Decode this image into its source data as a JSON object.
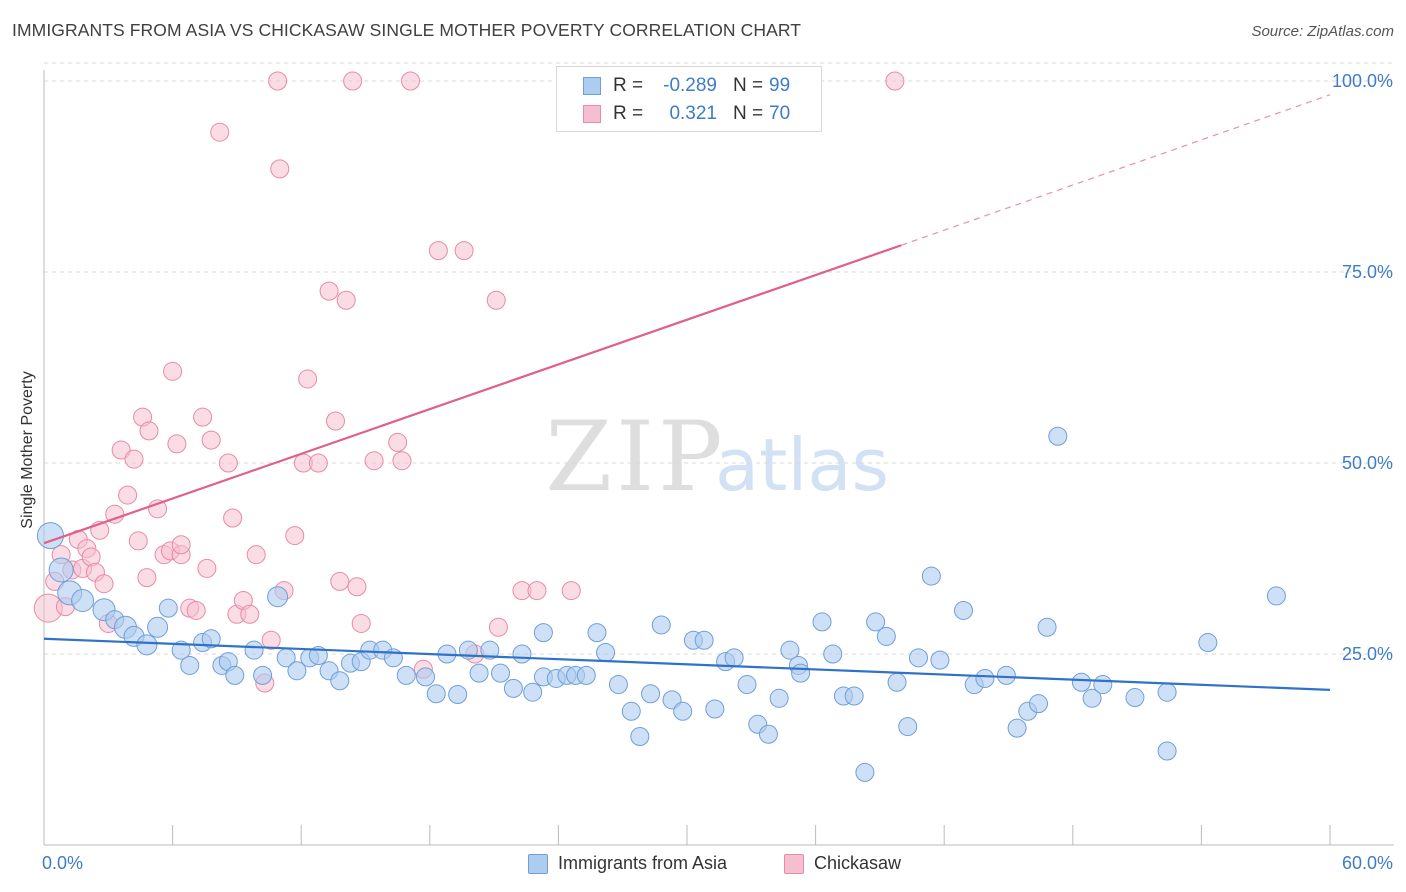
{
  "title": "IMMIGRANTS FROM ASIA VS CHICKASAW SINGLE MOTHER POVERTY CORRELATION CHART",
  "source": "Source: ZipAtlas.com",
  "watermark": {
    "zip": "ZIP",
    "atlas": "atlas"
  },
  "colors": {
    "blue_fill": "#aecbf0",
    "blue_stroke": "#6f9fd8",
    "blue_line": "#2f72c8",
    "pink_fill": "#f6bfd0",
    "pink_stroke": "#e88aa8",
    "pink_line": "#e0608a",
    "tick_text": "#3d7cc9",
    "grid": "#d9d9d9"
  },
  "stats": {
    "blue": {
      "r_label": "R =",
      "r_value": "-0.289",
      "n_label": "N =",
      "n_value": "99"
    },
    "pink": {
      "r_label": "R =",
      "r_value": "0.321",
      "n_label": "N =",
      "n_value": "70"
    }
  },
  "legend": {
    "blue_label": "Immigrants from Asia",
    "pink_label": "Chickasaw"
  },
  "chart_data": {
    "type": "scatter",
    "title": "IMMIGRANTS FROM ASIA VS CHICKASAW SINGLE MOTHER POVERTY CORRELATION CHART",
    "xlabel": "",
    "ylabel": "Single Mother Poverty",
    "xlim": [
      0,
      60
    ],
    "ylim": [
      0,
      102
    ],
    "x_tick_labels": {
      "min": "0.0%",
      "max": "60.0%"
    },
    "y_ticks": [
      {
        "value": 25,
        "label": "25.0%"
      },
      {
        "value": 50,
        "label": "50.0%"
      },
      {
        "value": 75,
        "label": "75.0%"
      },
      {
        "value": 100,
        "label": "100.0%"
      }
    ],
    "grid": true,
    "legend_position": "bottom-center",
    "series": [
      {
        "name": "Immigrants from Asia",
        "color": "#aecbf0",
        "trend": {
          "x": [
            0,
            60
          ],
          "y": [
            27.0,
            20.3
          ],
          "dashed_from_x": null
        },
        "points": [
          {
            "x": 0.3,
            "y": 40.5,
            "s": 13
          },
          {
            "x": 0.8,
            "y": 36,
            "s": 12
          },
          {
            "x": 1.2,
            "y": 33,
            "s": 12
          },
          {
            "x": 1.8,
            "y": 32,
            "s": 11
          },
          {
            "x": 2.8,
            "y": 30.8,
            "s": 11
          },
          {
            "x": 3.3,
            "y": 29.5,
            "s": 9
          },
          {
            "x": 3.8,
            "y": 28.5,
            "s": 11
          },
          {
            "x": 4.2,
            "y": 27.3,
            "s": 10
          },
          {
            "x": 4.8,
            "y": 26.2,
            "s": 10
          },
          {
            "x": 5.3,
            "y": 28.5,
            "s": 10
          },
          {
            "x": 5.8,
            "y": 31,
            "s": 9
          },
          {
            "x": 6.4,
            "y": 25.5,
            "s": 9
          },
          {
            "x": 6.8,
            "y": 23.5,
            "s": 9
          },
          {
            "x": 7.4,
            "y": 26.5,
            "s": 9
          },
          {
            "x": 7.8,
            "y": 27,
            "s": 9
          },
          {
            "x": 8.3,
            "y": 23.5,
            "s": 9
          },
          {
            "x": 8.6,
            "y": 24,
            "s": 9
          },
          {
            "x": 8.9,
            "y": 22.2,
            "s": 9
          },
          {
            "x": 9.8,
            "y": 25.5,
            "s": 9
          },
          {
            "x": 10.2,
            "y": 22.2,
            "s": 9
          },
          {
            "x": 10.9,
            "y": 32.5,
            "s": 10
          },
          {
            "x": 11.3,
            "y": 24.5,
            "s": 9
          },
          {
            "x": 11.8,
            "y": 22.8,
            "s": 9
          },
          {
            "x": 12.4,
            "y": 24.5,
            "s": 9
          },
          {
            "x": 12.8,
            "y": 24.8,
            "s": 9
          },
          {
            "x": 13.3,
            "y": 22.8,
            "s": 9
          },
          {
            "x": 13.8,
            "y": 21.5,
            "s": 9
          },
          {
            "x": 14.3,
            "y": 23.8,
            "s": 9
          },
          {
            "x": 14.8,
            "y": 24,
            "s": 9
          },
          {
            "x": 15.2,
            "y": 25.5,
            "s": 9
          },
          {
            "x": 15.8,
            "y": 25.5,
            "s": 9
          },
          {
            "x": 16.3,
            "y": 24.5,
            "s": 9
          },
          {
            "x": 16.9,
            "y": 22.2,
            "s": 9
          },
          {
            "x": 17.8,
            "y": 22,
            "s": 9
          },
          {
            "x": 18.3,
            "y": 19.8,
            "s": 9
          },
          {
            "x": 18.8,
            "y": 25,
            "s": 9
          },
          {
            "x": 19.3,
            "y": 19.7,
            "s": 9
          },
          {
            "x": 19.8,
            "y": 25.5,
            "s": 9
          },
          {
            "x": 20.3,
            "y": 22.5,
            "s": 9
          },
          {
            "x": 20.8,
            "y": 25.5,
            "s": 9
          },
          {
            "x": 21.3,
            "y": 22.5,
            "s": 9
          },
          {
            "x": 21.9,
            "y": 20.5,
            "s": 9
          },
          {
            "x": 22.3,
            "y": 25,
            "s": 9
          },
          {
            "x": 22.8,
            "y": 20,
            "s": 9
          },
          {
            "x": 23.3,
            "y": 27.8,
            "s": 9
          },
          {
            "x": 23.3,
            "y": 22,
            "s": 9
          },
          {
            "x": 23.9,
            "y": 21.8,
            "s": 9
          },
          {
            "x": 24.4,
            "y": 22.2,
            "s": 9
          },
          {
            "x": 24.8,
            "y": 22.2,
            "s": 9
          },
          {
            "x": 25.3,
            "y": 22.2,
            "s": 9
          },
          {
            "x": 25.8,
            "y": 27.8,
            "s": 9
          },
          {
            "x": 26.2,
            "y": 25.2,
            "s": 9
          },
          {
            "x": 26.8,
            "y": 21,
            "s": 9
          },
          {
            "x": 27.4,
            "y": 17.5,
            "s": 9
          },
          {
            "x": 27.8,
            "y": 14.2,
            "s": 9
          },
          {
            "x": 28.3,
            "y": 19.8,
            "s": 9
          },
          {
            "x": 28.8,
            "y": 28.8,
            "s": 9
          },
          {
            "x": 29.3,
            "y": 19,
            "s": 9
          },
          {
            "x": 29.8,
            "y": 17.5,
            "s": 9
          },
          {
            "x": 30.3,
            "y": 26.8,
            "s": 9
          },
          {
            "x": 30.8,
            "y": 26.8,
            "s": 9
          },
          {
            "x": 31.3,
            "y": 17.8,
            "s": 9
          },
          {
            "x": 31.8,
            "y": 24,
            "s": 9
          },
          {
            "x": 32.2,
            "y": 24.5,
            "s": 9
          },
          {
            "x": 32.8,
            "y": 21,
            "s": 9
          },
          {
            "x": 33.3,
            "y": 15.8,
            "s": 9
          },
          {
            "x": 33.8,
            "y": 14.5,
            "s": 9
          },
          {
            "x": 34.3,
            "y": 19.2,
            "s": 9
          },
          {
            "x": 34.8,
            "y": 25.5,
            "s": 9
          },
          {
            "x": 35.2,
            "y": 23.5,
            "s": 9
          },
          {
            "x": 35.3,
            "y": 22.5,
            "s": 9
          },
          {
            "x": 36.3,
            "y": 29.2,
            "s": 9
          },
          {
            "x": 36.8,
            "y": 25,
            "s": 9
          },
          {
            "x": 37.3,
            "y": 19.5,
            "s": 9
          },
          {
            "x": 37.8,
            "y": 19.5,
            "s": 9
          },
          {
            "x": 38.3,
            "y": 9.5,
            "s": 9
          },
          {
            "x": 38.8,
            "y": 29.2,
            "s": 9
          },
          {
            "x": 39.3,
            "y": 27.3,
            "s": 9
          },
          {
            "x": 39.8,
            "y": 21.3,
            "s": 9
          },
          {
            "x": 40.3,
            "y": 15.5,
            "s": 9
          },
          {
            "x": 40.8,
            "y": 24.5,
            "s": 9
          },
          {
            "x": 41.4,
            "y": 35.2,
            "s": 9
          },
          {
            "x": 41.8,
            "y": 24.2,
            "s": 9
          },
          {
            "x": 42.9,
            "y": 30.7,
            "s": 9
          },
          {
            "x": 43.4,
            "y": 21,
            "s": 9
          },
          {
            "x": 43.9,
            "y": 21.8,
            "s": 9
          },
          {
            "x": 44.9,
            "y": 22.2,
            "s": 9
          },
          {
            "x": 45.4,
            "y": 15.3,
            "s": 9
          },
          {
            "x": 45.9,
            "y": 17.5,
            "s": 9
          },
          {
            "x": 46.4,
            "y": 18.5,
            "s": 9
          },
          {
            "x": 46.8,
            "y": 28.5,
            "s": 9
          },
          {
            "x": 47.3,
            "y": 53.5,
            "s": 9
          },
          {
            "x": 48.4,
            "y": 21.3,
            "s": 9
          },
          {
            "x": 48.9,
            "y": 19.2,
            "s": 9
          },
          {
            "x": 49.4,
            "y": 21,
            "s": 9
          },
          {
            "x": 50.9,
            "y": 19.3,
            "s": 9
          },
          {
            "x": 52.4,
            "y": 20,
            "s": 9
          },
          {
            "x": 52.4,
            "y": 12.3,
            "s": 9
          },
          {
            "x": 54.3,
            "y": 26.5,
            "s": 9
          },
          {
            "x": 57.5,
            "y": 32.6,
            "s": 9
          }
        ]
      },
      {
        "name": "Chickasaw",
        "color": "#f6bfd0",
        "trend": {
          "x": [
            0,
            40,
            60
          ],
          "y": [
            39.5,
            78.5,
            98.2
          ],
          "dashed_from_x": 40
        },
        "points": [
          {
            "x": 0.2,
            "y": 31,
            "s": 14
          },
          {
            "x": 0.5,
            "y": 34.5,
            "s": 9
          },
          {
            "x": 0.8,
            "y": 38,
            "s": 9
          },
          {
            "x": 1.0,
            "y": 31.2,
            "s": 9
          },
          {
            "x": 1.3,
            "y": 36,
            "s": 9
          },
          {
            "x": 1.6,
            "y": 40,
            "s": 9
          },
          {
            "x": 1.8,
            "y": 36.2,
            "s": 9
          },
          {
            "x": 2.0,
            "y": 38.8,
            "s": 9
          },
          {
            "x": 2.2,
            "y": 37.7,
            "s": 9
          },
          {
            "x": 2.4,
            "y": 35.7,
            "s": 9
          },
          {
            "x": 2.6,
            "y": 41.2,
            "s": 9
          },
          {
            "x": 2.8,
            "y": 34.2,
            "s": 9
          },
          {
            "x": 3.0,
            "y": 29,
            "s": 9
          },
          {
            "x": 3.3,
            "y": 43.3,
            "s": 9
          },
          {
            "x": 3.6,
            "y": 51.7,
            "s": 9
          },
          {
            "x": 3.9,
            "y": 45.8,
            "s": 9
          },
          {
            "x": 4.2,
            "y": 50.5,
            "s": 9
          },
          {
            "x": 4.4,
            "y": 39.8,
            "s": 9
          },
          {
            "x": 4.6,
            "y": 56,
            "s": 9
          },
          {
            "x": 4.8,
            "y": 35,
            "s": 9
          },
          {
            "x": 4.9,
            "y": 54.2,
            "s": 9
          },
          {
            "x": 5.3,
            "y": 44,
            "s": 9
          },
          {
            "x": 5.6,
            "y": 38,
            "s": 9
          },
          {
            "x": 5.9,
            "y": 38.5,
            "s": 9
          },
          {
            "x": 6.0,
            "y": 62,
            "s": 9
          },
          {
            "x": 6.2,
            "y": 52.5,
            "s": 9
          },
          {
            "x": 6.4,
            "y": 38,
            "s": 9
          },
          {
            "x": 6.4,
            "y": 39.3,
            "s": 9
          },
          {
            "x": 6.8,
            "y": 31,
            "s": 9
          },
          {
            "x": 7.1,
            "y": 30.7,
            "s": 9
          },
          {
            "x": 7.4,
            "y": 56,
            "s": 9
          },
          {
            "x": 7.6,
            "y": 36.2,
            "s": 9
          },
          {
            "x": 7.8,
            "y": 53,
            "s": 9
          },
          {
            "x": 8.2,
            "y": 93.3,
            "s": 9
          },
          {
            "x": 8.6,
            "y": 50,
            "s": 9
          },
          {
            "x": 8.8,
            "y": 42.8,
            "s": 9
          },
          {
            "x": 9.0,
            "y": 30.2,
            "s": 9
          },
          {
            "x": 9.3,
            "y": 32,
            "s": 9
          },
          {
            "x": 9.6,
            "y": 30.2,
            "s": 9
          },
          {
            "x": 9.9,
            "y": 38,
            "s": 9
          },
          {
            "x": 10.3,
            "y": 21.2,
            "s": 9
          },
          {
            "x": 10.6,
            "y": 26.8,
            "s": 9
          },
          {
            "x": 10.9,
            "y": 100,
            "s": 9
          },
          {
            "x": 11.0,
            "y": 88.5,
            "s": 9
          },
          {
            "x": 11.2,
            "y": 33.3,
            "s": 9
          },
          {
            "x": 11.7,
            "y": 40.5,
            "s": 9
          },
          {
            "x": 12.1,
            "y": 50,
            "s": 9
          },
          {
            "x": 12.3,
            "y": 61,
            "s": 9
          },
          {
            "x": 12.8,
            "y": 50,
            "s": 9
          },
          {
            "x": 13.3,
            "y": 72.5,
            "s": 9
          },
          {
            "x": 13.6,
            "y": 55.5,
            "s": 9
          },
          {
            "x": 13.8,
            "y": 34.5,
            "s": 9
          },
          {
            "x": 14.1,
            "y": 71.3,
            "s": 9
          },
          {
            "x": 14.4,
            "y": 100,
            "s": 9
          },
          {
            "x": 14.6,
            "y": 33.8,
            "s": 9
          },
          {
            "x": 14.8,
            "y": 29,
            "s": 9
          },
          {
            "x": 15.4,
            "y": 50.3,
            "s": 9
          },
          {
            "x": 16.5,
            "y": 52.7,
            "s": 9
          },
          {
            "x": 16.7,
            "y": 50.3,
            "s": 9
          },
          {
            "x": 17.1,
            "y": 100,
            "s": 9
          },
          {
            "x": 17.7,
            "y": 23,
            "s": 9
          },
          {
            "x": 18.4,
            "y": 77.8,
            "s": 9
          },
          {
            "x": 19.6,
            "y": 77.8,
            "s": 9
          },
          {
            "x": 20.1,
            "y": 25,
            "s": 9
          },
          {
            "x": 21.1,
            "y": 71.3,
            "s": 9
          },
          {
            "x": 21.2,
            "y": 28.5,
            "s": 9
          },
          {
            "x": 22.3,
            "y": 33.3,
            "s": 9
          },
          {
            "x": 23.0,
            "y": 33.3,
            "s": 9
          },
          {
            "x": 24.6,
            "y": 33.3,
            "s": 9
          },
          {
            "x": 39.7,
            "y": 100,
            "s": 9
          }
        ]
      }
    ]
  }
}
